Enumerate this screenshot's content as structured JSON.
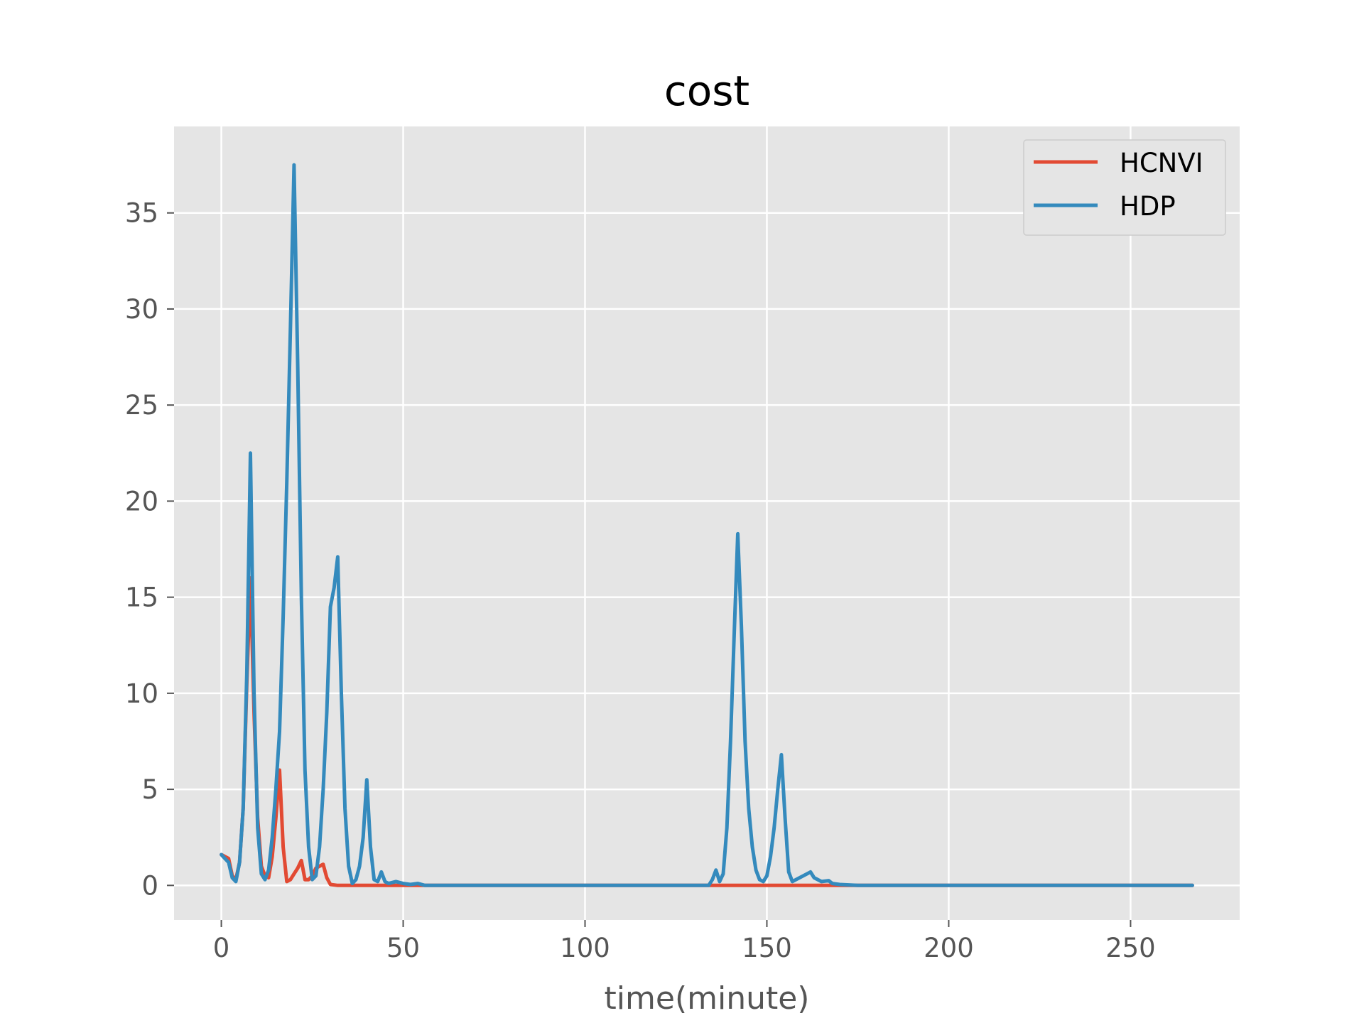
{
  "chart_data": {
    "type": "line",
    "title": "cost",
    "xlabel": "time(minute)",
    "ylabel": "",
    "xlim": [
      -13,
      280
    ],
    "ylim": [
      -1.8,
      39.5
    ],
    "xticks": [
      0,
      50,
      100,
      150,
      200,
      250
    ],
    "yticks": [
      0,
      5,
      10,
      15,
      20,
      25,
      30,
      35
    ],
    "grid": true,
    "legend": "top-right",
    "colors": {
      "background": "#e5e5e5",
      "grid": "#ffffff",
      "tick": "#555555"
    },
    "series": [
      {
        "name": "HCNVI",
        "color": "#e24a33",
        "points": [
          [
            0,
            1.6
          ],
          [
            1,
            1.5
          ],
          [
            2,
            1.4
          ],
          [
            3,
            0.5
          ],
          [
            4,
            0.3
          ],
          [
            5,
            1.2
          ],
          [
            6,
            4.0
          ],
          [
            7,
            10.5
          ],
          [
            8,
            16.0
          ],
          [
            9,
            9.0
          ],
          [
            10,
            3.5
          ],
          [
            11,
            1.0
          ],
          [
            12,
            0.5
          ],
          [
            13,
            0.4
          ],
          [
            14,
            1.5
          ],
          [
            15,
            3.5
          ],
          [
            16,
            6.0
          ],
          [
            17,
            2.0
          ],
          [
            18,
            0.2
          ],
          [
            19,
            0.3
          ],
          [
            20,
            0.6
          ],
          [
            21,
            0.9
          ],
          [
            22,
            1.3
          ],
          [
            23,
            0.3
          ],
          [
            24,
            0.3
          ],
          [
            25,
            0.5
          ],
          [
            26,
            0.9
          ],
          [
            27,
            1.0
          ],
          [
            28,
            1.1
          ],
          [
            29,
            0.4
          ],
          [
            30,
            0.05
          ],
          [
            32,
            0.0
          ],
          [
            40,
            0.0
          ],
          [
            60,
            0.0
          ],
          [
            100,
            0.0
          ],
          [
            134,
            0.0
          ],
          [
            150,
            0.0
          ],
          [
            170,
            0.0
          ],
          [
            200,
            0.0
          ],
          [
            250,
            0.0
          ],
          [
            267,
            0.0
          ]
        ]
      },
      {
        "name": "HDP",
        "color": "#348abd",
        "points": [
          [
            0,
            1.6
          ],
          [
            1,
            1.4
          ],
          [
            2,
            1.2
          ],
          [
            3,
            0.4
          ],
          [
            4,
            0.2
          ],
          [
            5,
            1.2
          ],
          [
            6,
            4.0
          ],
          [
            7,
            11.0
          ],
          [
            8,
            22.5
          ],
          [
            9,
            10.0
          ],
          [
            10,
            3.0
          ],
          [
            11,
            0.6
          ],
          [
            12,
            0.3
          ],
          [
            13,
            0.8
          ],
          [
            14,
            2.5
          ],
          [
            15,
            5.0
          ],
          [
            16,
            8.0
          ],
          [
            17,
            14.0
          ],
          [
            18,
            21.0
          ],
          [
            19,
            29.0
          ],
          [
            20,
            37.5
          ],
          [
            21,
            27.0
          ],
          [
            22,
            15.0
          ],
          [
            23,
            6.0
          ],
          [
            24,
            2.0
          ],
          [
            25,
            0.3
          ],
          [
            26,
            0.5
          ],
          [
            27,
            2.0
          ],
          [
            28,
            5.0
          ],
          [
            29,
            9.0
          ],
          [
            30,
            14.5
          ],
          [
            31,
            15.5
          ],
          [
            32,
            17.1
          ],
          [
            33,
            10.0
          ],
          [
            34,
            4.0
          ],
          [
            35,
            1.0
          ],
          [
            36,
            0.1
          ],
          [
            37,
            0.3
          ],
          [
            38,
            1.0
          ],
          [
            39,
            2.5
          ],
          [
            40,
            5.5
          ],
          [
            41,
            2.0
          ],
          [
            42,
            0.3
          ],
          [
            43,
            0.2
          ],
          [
            44,
            0.7
          ],
          [
            45,
            0.2
          ],
          [
            46,
            0.1
          ],
          [
            48,
            0.2
          ],
          [
            50,
            0.1
          ],
          [
            52,
            0.05
          ],
          [
            54,
            0.1
          ],
          [
            56,
            0.0
          ],
          [
            60,
            0.0
          ],
          [
            80,
            0.0
          ],
          [
            100,
            0.0
          ],
          [
            120,
            0.0
          ],
          [
            134,
            0.0
          ],
          [
            135,
            0.3
          ],
          [
            136,
            0.8
          ],
          [
            137,
            0.2
          ],
          [
            138,
            0.6
          ],
          [
            139,
            3.0
          ],
          [
            140,
            7.5
          ],
          [
            141,
            13.0
          ],
          [
            142,
            18.3
          ],
          [
            143,
            13.5
          ],
          [
            144,
            7.5
          ],
          [
            145,
            4.0
          ],
          [
            146,
            2.0
          ],
          [
            147,
            0.8
          ],
          [
            148,
            0.3
          ],
          [
            149,
            0.2
          ],
          [
            150,
            0.5
          ],
          [
            151,
            1.5
          ],
          [
            152,
            3.0
          ],
          [
            153,
            5.0
          ],
          [
            154,
            6.8
          ],
          [
            155,
            3.5
          ],
          [
            156,
            0.7
          ],
          [
            157,
            0.2
          ],
          [
            158,
            0.3
          ],
          [
            160,
            0.5
          ],
          [
            162,
            0.7
          ],
          [
            163,
            0.4
          ],
          [
            165,
            0.2
          ],
          [
            167,
            0.25
          ],
          [
            168,
            0.1
          ],
          [
            170,
            0.05
          ],
          [
            175,
            0.0
          ],
          [
            200,
            0.0
          ],
          [
            250,
            0.0
          ],
          [
            267,
            0.0
          ]
        ]
      }
    ]
  }
}
